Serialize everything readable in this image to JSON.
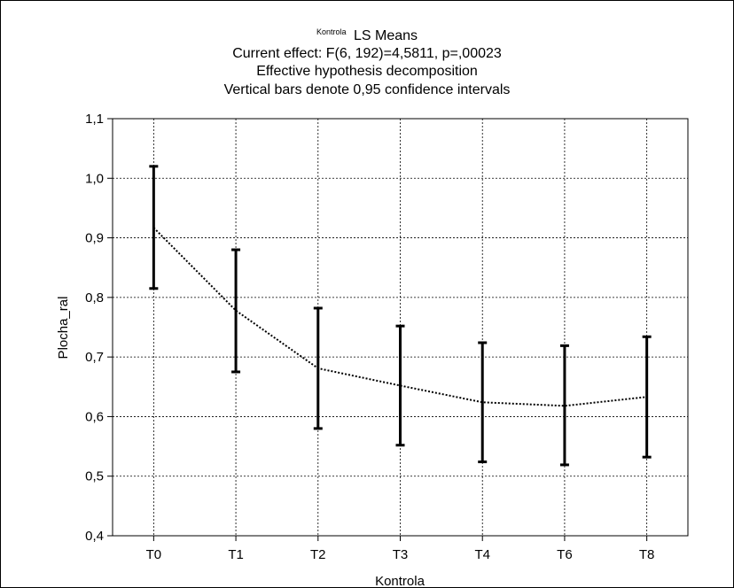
{
  "chart_data": {
    "type": "line",
    "title_prefix": "Kontrola",
    "title_main": "LS Means",
    "subtitle_lines": [
      "Current effect: F(6, 192)=4,5811, p=,00023",
      "Effective hypothesis decomposition",
      "Vertical bars denote 0,95 confidence intervals"
    ],
    "xlabel": "Kontrola",
    "ylabel": "Plocha_ral",
    "categories": [
      "T0",
      "T1",
      "T2",
      "T3",
      "T4",
      "T6",
      "T8"
    ],
    "ylim": [
      0.4,
      1.1
    ],
    "yticks": [
      0.4,
      0.5,
      0.6,
      0.7,
      0.8,
      0.9,
      1.0,
      1.1
    ],
    "ytick_labels": [
      "0,4",
      "0,5",
      "0,6",
      "0,7",
      "0,8",
      "0,9",
      "1,0",
      "1,1"
    ],
    "grid": true,
    "series": [
      {
        "values": [
          0.917,
          0.778,
          0.681,
          0.652,
          0.624,
          0.618,
          0.633
        ],
        "ci_lower": [
          0.815,
          0.675,
          0.58,
          0.552,
          0.524,
          0.519,
          0.532
        ],
        "ci_upper": [
          1.02,
          0.88,
          0.782,
          0.752,
          0.724,
          0.719,
          0.734
        ]
      }
    ]
  }
}
